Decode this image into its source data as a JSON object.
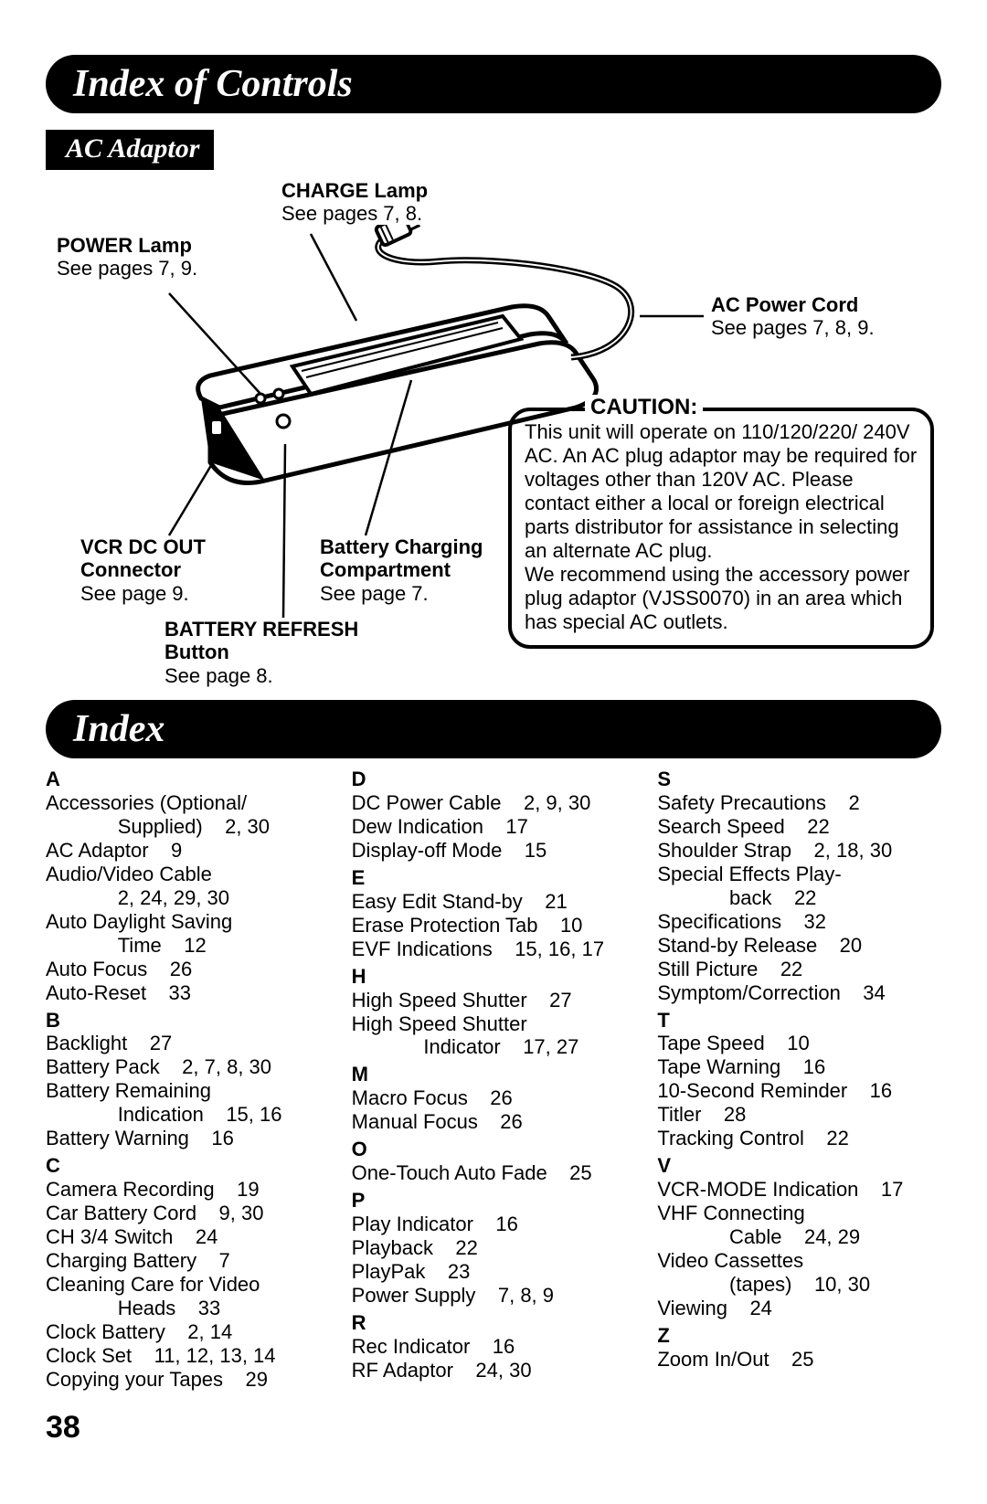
{
  "page_number": "38",
  "titles": {
    "index_of_controls": "Index of Controls",
    "index": "Index",
    "ac_adaptor": "AC Adaptor"
  },
  "callouts": {
    "charge_lamp": {
      "title": "CHARGE Lamp",
      "ref": "See pages 7, 8."
    },
    "power_lamp": {
      "title": "POWER Lamp",
      "ref": "See pages 7, 9."
    },
    "ac_power_cord": {
      "title": "AC Power Cord",
      "ref": "See pages 7, 8, 9."
    },
    "vcr_dc_out": {
      "title": "VCR DC OUT\nConnector",
      "ref": "See page 9."
    },
    "battery_charging": {
      "title": "Battery Charging\nCompartment",
      "ref": "See page 7."
    },
    "battery_refresh": {
      "title": "BATTERY REFRESH\nButton",
      "ref": "See page 8."
    }
  },
  "caution": {
    "title": "CAUTION:",
    "text": "This unit will operate on 110/120/220/ 240V AC. An AC plug adaptor may be required for voltages other than 120V AC. Please contact either a local or foreign electrical parts distributor for assistance in selecting an alternate AC plug.\nWe recommend using the accessory power plug adaptor (VJSS0070) in an area which has special AC outlets."
  },
  "index_columns": [
    [
      {
        "type": "letter",
        "text": "A"
      },
      {
        "type": "entry",
        "text": "Accessories (Optional/\n      Supplied)    2, 30"
      },
      {
        "type": "entry",
        "text": "AC Adaptor    9"
      },
      {
        "type": "entry",
        "text": "Audio/Video Cable\n      2, 24, 29, 30"
      },
      {
        "type": "entry",
        "text": "Auto Daylight Saving\n      Time    12"
      },
      {
        "type": "entry",
        "text": "Auto Focus    26"
      },
      {
        "type": "entry",
        "text": "Auto-Reset    33"
      },
      {
        "type": "letter",
        "text": "B"
      },
      {
        "type": "entry",
        "text": "Backlight    27"
      },
      {
        "type": "entry",
        "text": "Battery Pack    2, 7, 8, 30"
      },
      {
        "type": "entry",
        "text": "Battery Remaining\n      Indication    15, 16"
      },
      {
        "type": "entry",
        "text": "Battery Warning    16"
      },
      {
        "type": "letter",
        "text": "C"
      },
      {
        "type": "entry",
        "text": "Camera Recording    19"
      },
      {
        "type": "entry",
        "text": "Car Battery Cord    9, 30"
      },
      {
        "type": "entry",
        "text": "CH 3/4 Switch    24"
      },
      {
        "type": "entry",
        "text": "Charging Battery    7"
      },
      {
        "type": "entry",
        "text": "Cleaning Care for Video\n      Heads    33"
      },
      {
        "type": "entry",
        "text": "Clock Battery    2, 14"
      },
      {
        "type": "entry",
        "text": "Clock Set    11, 12, 13, 14"
      },
      {
        "type": "entry",
        "text": "Copying your Tapes    29"
      }
    ],
    [
      {
        "type": "letter",
        "text": "D"
      },
      {
        "type": "entry",
        "text": "DC Power Cable    2, 9, 30"
      },
      {
        "type": "entry",
        "text": "Dew Indication    17"
      },
      {
        "type": "entry",
        "text": "Display-off Mode    15"
      },
      {
        "type": "letter",
        "text": "E"
      },
      {
        "type": "entry",
        "text": "Easy Edit Stand-by    21"
      },
      {
        "type": "entry",
        "text": "Erase Protection Tab    10"
      },
      {
        "type": "entry",
        "text": "EVF Indications    15, 16, 17"
      },
      {
        "type": "letter",
        "text": "H"
      },
      {
        "type": "entry",
        "text": "High Speed Shutter    27"
      },
      {
        "type": "entry",
        "text": "High Speed Shutter\n      Indicator    17, 27"
      },
      {
        "type": "letter",
        "text": "M"
      },
      {
        "type": "entry",
        "text": "Macro Focus    26"
      },
      {
        "type": "entry",
        "text": "Manual Focus    26"
      },
      {
        "type": "letter",
        "text": "O"
      },
      {
        "type": "entry",
        "text": "One-Touch Auto Fade    25"
      },
      {
        "type": "letter",
        "text": "P"
      },
      {
        "type": "entry",
        "text": "Play Indicator    16"
      },
      {
        "type": "entry",
        "text": "Playback    22"
      },
      {
        "type": "entry",
        "text": "PlayPak    23"
      },
      {
        "type": "entry",
        "text": "Power Supply    7, 8, 9"
      },
      {
        "type": "letter",
        "text": "R"
      },
      {
        "type": "entry",
        "text": "Rec Indicator    16"
      },
      {
        "type": "entry",
        "text": "RF Adaptor    24, 30"
      }
    ],
    [
      {
        "type": "letter",
        "text": "S"
      },
      {
        "type": "entry",
        "text": "Safety Precautions    2"
      },
      {
        "type": "entry",
        "text": "Search Speed    22"
      },
      {
        "type": "entry",
        "text": "Shoulder Strap    2, 18, 30"
      },
      {
        "type": "entry",
        "text": "Special Effects Play-\n      back    22"
      },
      {
        "type": "entry",
        "text": "Specifications    32"
      },
      {
        "type": "entry",
        "text": "Stand-by Release    20"
      },
      {
        "type": "entry",
        "text": "Still Picture    22"
      },
      {
        "type": "entry",
        "text": "Symptom/Correction    34"
      },
      {
        "type": "letter",
        "text": "T"
      },
      {
        "type": "entry",
        "text": "Tape Speed    10"
      },
      {
        "type": "entry",
        "text": "Tape Warning    16"
      },
      {
        "type": "entry",
        "text": "10-Second Reminder    16"
      },
      {
        "type": "entry",
        "text": "Titler    28"
      },
      {
        "type": "entry",
        "text": "Tracking Control    22"
      },
      {
        "type": "letter",
        "text": "V"
      },
      {
        "type": "entry",
        "text": "VCR-MODE Indication    17"
      },
      {
        "type": "entry",
        "text": "VHF Connecting\n      Cable    24, 29"
      },
      {
        "type": "entry",
        "text": "Video Cassettes\n      (tapes)    10, 30"
      },
      {
        "type": "entry",
        "text": "Viewing    24"
      },
      {
        "type": "letter",
        "text": "Z"
      },
      {
        "type": "entry",
        "text": "Zoom In/Out    25"
      }
    ]
  ]
}
